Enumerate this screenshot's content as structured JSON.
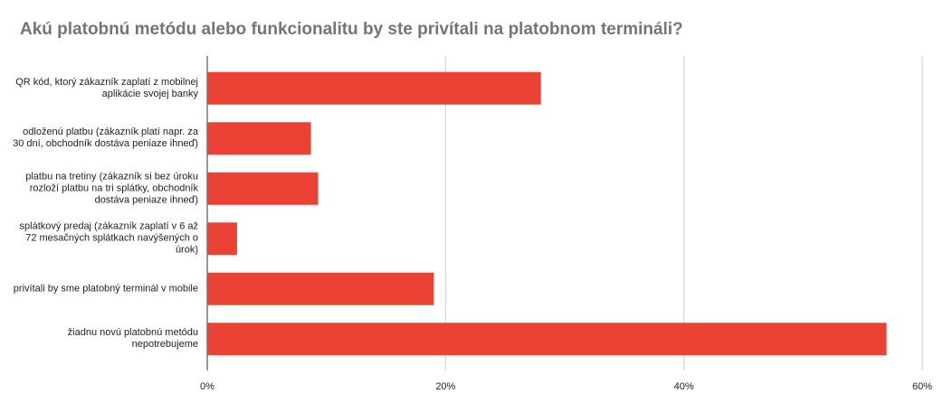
{
  "chart_data": {
    "type": "bar",
    "orientation": "horizontal",
    "title": "Akú platobnú metódu alebo funkcionalitu by ste privítali na platobnom termináli?",
    "categories": [
      "QR kód, ktorý zákazník zaplatí z mobilnej aplikácie svojej banky",
      "odloženú platbu (zákazník platí napr. za 30 dní, obchodník dostáva peniaze ihneď)",
      "platbu na tretiny (zákazník si bez úroku rozloží platbu na tri splátky, obchodník dostáva peniaze ihneď)",
      "splátkový predaj (zákazník zaplatí v 6 až 72 mesačných splátkach navýšených o úrok)",
      "privítali by sme platobný terminál v mobile",
      "žiadnu novú platobnú metódu nepotrebujeme"
    ],
    "values": [
      28,
      8.7,
      9.3,
      2.5,
      19,
      57
    ],
    "color": "#ea4335",
    "xlim": [
      0,
      60
    ],
    "xticks": [
      {
        "value": 0,
        "label": "0%"
      },
      {
        "value": 20,
        "label": "20%"
      },
      {
        "value": 40,
        "label": "40%"
      },
      {
        "value": 60,
        "label": "60%"
      }
    ],
    "grid": true
  }
}
